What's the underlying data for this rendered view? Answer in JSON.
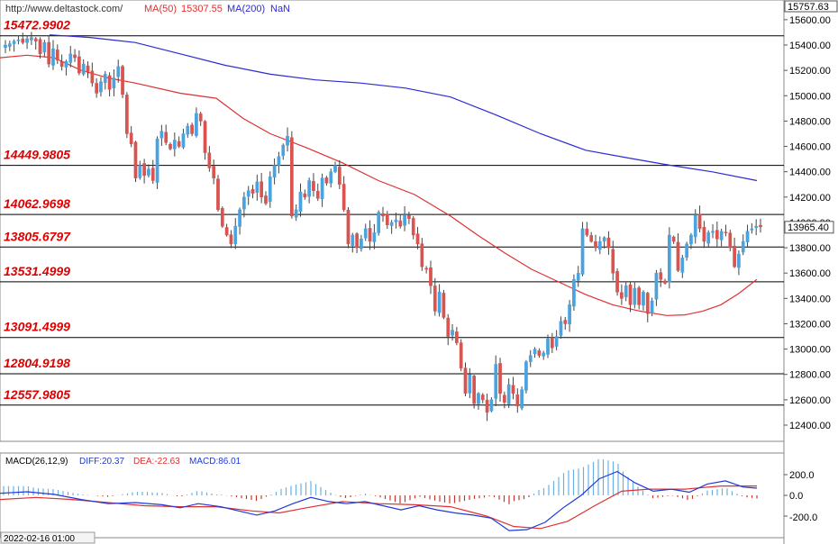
{
  "header": {
    "site_url": "http://www.deltastock.com/",
    "ma50_label": "MA(50)",
    "ma50_value": "15307.55",
    "ma200_label": "MA(200)",
    "ma200_value": "NaN",
    "top_price": "15757.63",
    "last_price": "13965.40"
  },
  "macd": {
    "title": "MACD(26,12,9)",
    "diff_label": "DIFF:20.37",
    "dea_label": "DEA:-22.63",
    "macd_label": "MACD:86.01",
    "ticks": [
      "200.0",
      "0.0",
      "-200.0"
    ]
  },
  "footer": {
    "date": "2022-02-16 01:00"
  },
  "colors": {
    "up": "#4aa3df",
    "down": "#d9534f",
    "ma50": "#e03030",
    "ma200": "#2b2bd4",
    "level_label": "#e00000",
    "diff_line": "#1f3ad6",
    "dea_line": "#e03030",
    "hist_up": "#6ab0e6",
    "hist_down": "#c0392b"
  },
  "chart_data": {
    "type": "candlestick",
    "y_axis": {
      "min": 12300,
      "max": 15700,
      "step": 200,
      "tick_labels": [
        "12400.00",
        "12600.00",
        "12800.00",
        "13000.00",
        "13200.00",
        "13400.00",
        "13600.00",
        "13800.00",
        "14000.00",
        "14200.00",
        "14400.00",
        "14600.00",
        "14800.00",
        "15000.00",
        "15200.00",
        "15400.00",
        "15600.00"
      ]
    },
    "levels": [
      {
        "label": "15472.9902",
        "value": 15472.99
      },
      {
        "label": "14449.9805",
        "value": 14449.98
      },
      {
        "label": "14062.9698",
        "value": 14062.97
      },
      {
        "label": "13805.6797",
        "value": 13805.68
      },
      {
        "label": "13531.4999",
        "value": 13531.5
      },
      {
        "label": "13091.4999",
        "value": 13091.5
      },
      {
        "label": "12804.9198",
        "value": 12804.92
      },
      {
        "label": "12557.9805",
        "value": 12557.98
      }
    ],
    "closes": [
      15400,
      15410,
      15430,
      15440,
      15420,
      15450,
      15460,
      15430,
      15330,
      15420,
      15250,
      15370,
      15280,
      15230,
      15270,
      15330,
      15300,
      15180,
      15250,
      15190,
      15100,
      15020,
      15110,
      15170,
      15050,
      15140,
      15230,
      15010,
      14700,
      14620,
      14350,
      14450,
      14370,
      14420,
      14330,
      14660,
      14720,
      14630,
      14580,
      14650,
      14600,
      14700,
      14760,
      14700,
      14860,
      14800,
      14550,
      14430,
      14350,
      14100,
      13970,
      13900,
      13830,
      13970,
      14100,
      14200,
      14250,
      14230,
      14320,
      14200,
      14150,
      14360,
      14450,
      14520,
      14610,
      14680,
      14050,
      14100,
      14240,
      14200,
      14330,
      14250,
      14190,
      14350,
      14310,
      14400,
      14450,
      14300,
      14100,
      13830,
      13900,
      13800,
      13870,
      13950,
      13850,
      13920,
      14080,
      14050,
      13980,
      14000,
      14020,
      13970,
      14060,
      14030,
      13900,
      13830,
      13650,
      13630,
      13500,
      13300,
      13450,
      13250,
      13100,
      13150,
      13050,
      12850,
      12650,
      12800,
      12570,
      12650,
      12600,
      12500,
      12600,
      12880,
      12650,
      12580,
      12720,
      12650,
      12550,
      12680,
      12900,
      12950,
      13000,
      12950,
      12970,
      13080,
      13010,
      13100,
      13220,
      13200,
      13350,
      13550,
      13600,
      13950,
      13900,
      13850,
      13800,
      13850,
      13880,
      13800,
      13600,
      13450,
      13400,
      13500,
      13350,
      13480,
      13350,
      13450,
      13280,
      13380,
      13600,
      13550,
      13520,
      13900,
      13850,
      13620,
      13720,
      13830,
      13900,
      14060,
      13950,
      13850,
      13920,
      13930,
      13870,
      13930,
      13920,
      13800,
      13650,
      13750,
      13850,
      13930,
      13950,
      13970,
      13965
    ],
    "ma50": [
      [
        0,
        15300
      ],
      [
        30,
        15320
      ],
      [
        60,
        15300
      ],
      [
        90,
        15200
      ],
      [
        120,
        15140
      ],
      [
        150,
        15100
      ],
      [
        200,
        15020
      ],
      [
        240,
        14980
      ],
      [
        270,
        14820
      ],
      [
        300,
        14700
      ],
      [
        340,
        14590
      ],
      [
        380,
        14470
      ],
      [
        420,
        14330
      ],
      [
        460,
        14220
      ],
      [
        500,
        14050
      ],
      [
        530,
        13900
      ],
      [
        560,
        13760
      ],
      [
        590,
        13630
      ],
      [
        620,
        13530
      ],
      [
        650,
        13430
      ],
      [
        680,
        13350
      ],
      [
        710,
        13300
      ],
      [
        740,
        13265
      ],
      [
        760,
        13270
      ],
      [
        780,
        13300
      ],
      [
        800,
        13350
      ],
      [
        820,
        13440
      ],
      [
        840,
        13550
      ]
    ],
    "ma200": [
      [
        55,
        15480
      ],
      [
        100,
        15460
      ],
      [
        150,
        15420
      ],
      [
        200,
        15330
      ],
      [
        250,
        15240
      ],
      [
        300,
        15170
      ],
      [
        350,
        15125
      ],
      [
        400,
        15100
      ],
      [
        450,
        15060
      ],
      [
        500,
        14990
      ],
      [
        550,
        14850
      ],
      [
        600,
        14700
      ],
      [
        650,
        14570
      ],
      [
        700,
        14505
      ],
      [
        740,
        14455
      ],
      [
        790,
        14400
      ],
      [
        840,
        14330
      ]
    ],
    "macd_series": {
      "diff": [
        [
          0,
          20
        ],
        [
          30,
          35
        ],
        [
          60,
          10
        ],
        [
          90,
          -40
        ],
        [
          120,
          -80
        ],
        [
          150,
          -70
        ],
        [
          180,
          -90
        ],
        [
          200,
          -120
        ],
        [
          220,
          -80
        ],
        [
          245,
          -110
        ],
        [
          265,
          -150
        ],
        [
          285,
          -190
        ],
        [
          305,
          -150
        ],
        [
          325,
          -80
        ],
        [
          345,
          -20
        ],
        [
          365,
          -60
        ],
        [
          385,
          -80
        ],
        [
          405,
          -60
        ],
        [
          425,
          -100
        ],
        [
          445,
          -140
        ],
        [
          465,
          -100
        ],
        [
          485,
          -140
        ],
        [
          505,
          -170
        ],
        [
          525,
          -190
        ],
        [
          545,
          -220
        ],
        [
          565,
          -340
        ],
        [
          585,
          -330
        ],
        [
          605,
          -260
        ],
        [
          625,
          -120
        ],
        [
          645,
          0
        ],
        [
          665,
          160
        ],
        [
          685,
          230
        ],
        [
          705,
          120
        ],
        [
          725,
          40
        ],
        [
          745,
          60
        ],
        [
          765,
          30
        ],
        [
          785,
          110
        ],
        [
          805,
          140
        ],
        [
          825,
          80
        ],
        [
          840,
          70
        ]
      ],
      "dea": [
        [
          0,
          -40
        ],
        [
          40,
          -20
        ],
        [
          80,
          -40
        ],
        [
          120,
          -70
        ],
        [
          160,
          -100
        ],
        [
          200,
          -110
        ],
        [
          240,
          -110
        ],
        [
          280,
          -150
        ],
        [
          310,
          -170
        ],
        [
          340,
          -120
        ],
        [
          380,
          -60
        ],
        [
          420,
          -80
        ],
        [
          460,
          -90
        ],
        [
          500,
          -110
        ],
        [
          540,
          -200
        ],
        [
          570,
          -300
        ],
        [
          600,
          -320
        ],
        [
          630,
          -250
        ],
        [
          660,
          -100
        ],
        [
          690,
          40
        ],
        [
          720,
          60
        ],
        [
          760,
          60
        ],
        [
          800,
          90
        ],
        [
          840,
          90
        ]
      ],
      "histogram_note": "bars"
    }
  }
}
